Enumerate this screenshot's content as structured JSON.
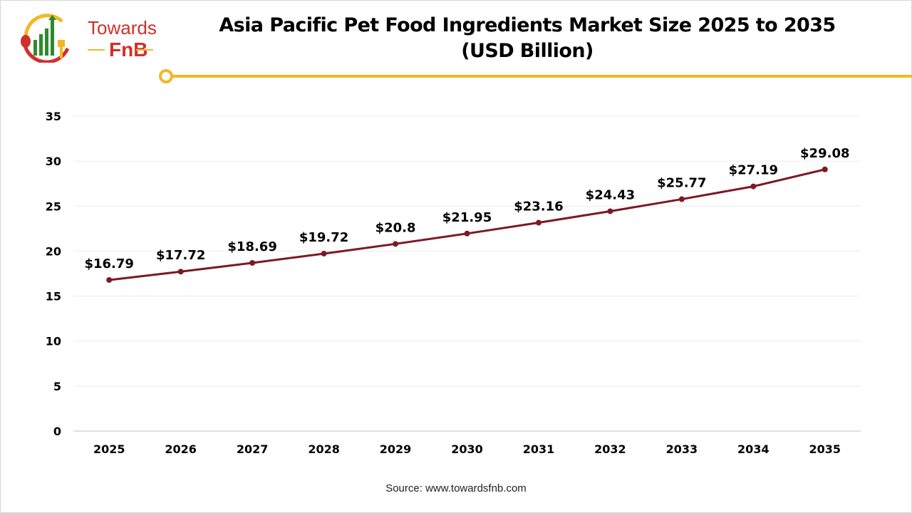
{
  "logo": {
    "line1": "Towards",
    "line2": "FnB"
  },
  "colors": {
    "line": "#7b1a24",
    "accent": "#f2b824",
    "logo_red": "#d0302a",
    "logo_green": "#2e8a2e"
  },
  "source": "Source: www.towardsfnb.com",
  "chart_data": {
    "type": "line",
    "title": "Asia Pacific Pet Food Ingredients Market Size 2025 to 2035",
    "subtitle": "(USD Billion)",
    "categories": [
      "2025",
      "2026",
      "2027",
      "2028",
      "2029",
      "2030",
      "2031",
      "2032",
      "2033",
      "2034",
      "2035"
    ],
    "values": [
      16.79,
      17.72,
      18.69,
      19.72,
      20.8,
      21.95,
      23.16,
      24.43,
      25.77,
      27.19,
      29.08
    ],
    "data_labels": [
      "$16.79",
      "$17.72",
      "$18.69",
      "$19.72",
      "$20.8",
      "$21.95",
      "$23.16",
      "$24.43",
      "$25.77",
      "$27.19",
      "$29.08"
    ],
    "yticks": [
      "0",
      "5",
      "10",
      "15",
      "20",
      "25",
      "30",
      "35"
    ],
    "ylim": [
      0,
      35
    ],
    "grid": true,
    "legend": "none"
  }
}
